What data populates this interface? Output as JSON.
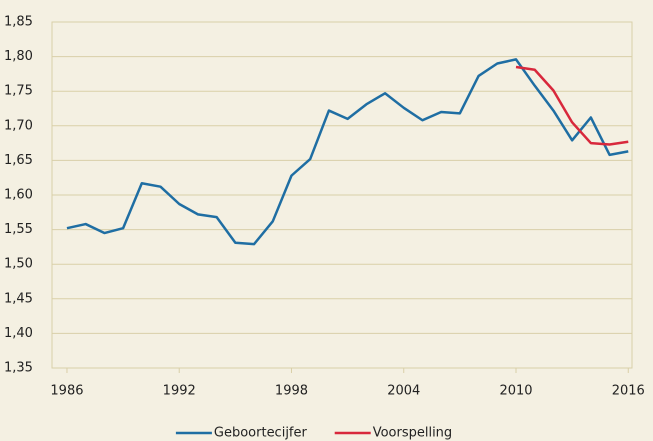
{
  "chart_data": {
    "type": "line",
    "series": [
      {
        "name": "Geboortecijfer",
        "color": "#1f6ea3",
        "x": [
          1986,
          1987,
          1988,
          1989,
          1990,
          1991,
          1992,
          1993,
          1994,
          1995,
          1996,
          1997,
          1998,
          1999,
          2000,
          2001,
          2002,
          2003,
          2004,
          2005,
          2006,
          2007,
          2008,
          2009,
          2010,
          2011,
          2012,
          2013,
          2014,
          2015,
          2016
        ],
        "values": [
          1.552,
          1.558,
          1.545,
          1.552,
          1.617,
          1.612,
          1.587,
          1.572,
          1.568,
          1.531,
          1.529,
          1.562,
          1.628,
          1.652,
          1.722,
          1.71,
          1.731,
          1.747,
          1.726,
          1.708,
          1.72,
          1.718,
          1.772,
          1.79,
          1.796,
          1.758,
          1.722,
          1.679,
          1.712,
          1.658,
          1.663
        ]
      },
      {
        "name": "Voorspelling",
        "color": "#d8283c",
        "x": [
          2010,
          2011,
          2012,
          2013,
          2014,
          2015,
          2016
        ],
        "values": [
          1.785,
          1.781,
          1.751,
          1.705,
          1.675,
          1.673,
          1.677
        ]
      }
    ],
    "xlim": [
      1985.2,
      2016.2
    ],
    "xticks": [
      1986,
      1992,
      1998,
      2004,
      2010,
      2016
    ],
    "ylim": [
      1.35,
      1.85
    ],
    "yticks": [
      {
        "value": 1.35,
        "label": "1,35"
      },
      {
        "value": 1.4,
        "label": "1,40"
      },
      {
        "value": 1.45,
        "label": "1,45"
      },
      {
        "value": 1.5,
        "label": "1,50"
      },
      {
        "value": 1.55,
        "label": "1,55"
      },
      {
        "value": 1.6,
        "label": "1,60"
      },
      {
        "value": 1.65,
        "label": "1,65"
      },
      {
        "value": 1.7,
        "label": "1,70"
      },
      {
        "value": 1.75,
        "label": "1,75"
      },
      {
        "value": 1.8,
        "label": "1,80"
      },
      {
        "value": 1.85,
        "label": "1,85"
      }
    ],
    "grid": true,
    "legend": "bottom"
  }
}
